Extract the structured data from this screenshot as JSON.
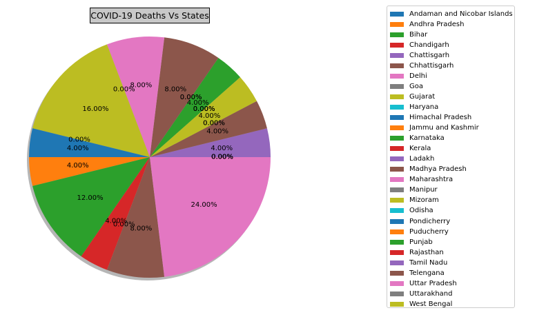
{
  "chart_data": {
    "type": "pie",
    "title": "COVID-19 Deaths Vs States",
    "categories": [
      "Andaman and Nicobar Islands",
      "Andhra Pradesh",
      "Bihar",
      "Chandigarh",
      "Chattisgarh",
      "Chhattisgarh",
      "Delhi",
      "Goa",
      "Gujarat",
      "Haryana",
      "Himachal Pradesh",
      "Jammu and Kashmir",
      "Karnataka",
      "Kerala",
      "Ladakh",
      "Madhya Pradesh",
      "Maharashtra",
      "Manipur",
      "Mizoram",
      "Odisha",
      "Pondicherry",
      "Puducherry",
      "Punjab",
      "Rajasthan",
      "Tamil Nadu",
      "Telengana",
      "Uttar Pradesh",
      "Uttarakhand",
      "West Bengal"
    ],
    "values": [
      0,
      0,
      0,
      0,
      4,
      4,
      0,
      0,
      4,
      0,
      0,
      0,
      4,
      0,
      0,
      8,
      8,
      0,
      16,
      0,
      4,
      4,
      12,
      4,
      0,
      8,
      24,
      0,
      0
    ],
    "labels": [
      "0.00%",
      "0.00%",
      "0.00%",
      "0.00%",
      "4.00%",
      "4.00%",
      "0.00%",
      "0.00%",
      "4.00%",
      "0.00%",
      "0.00%",
      "0.00%",
      "4.00%",
      "0.00%",
      "0.00%",
      "8.00%",
      "8.00%",
      "0.00%",
      "16.00%",
      "0.00%",
      "4.00%",
      "4.00%",
      "12.00%",
      "4.00%",
      "0.00%",
      "8.00%",
      "24.00%",
      "0.00%",
      "0.00%"
    ],
    "colors": [
      "#1f77b4",
      "#ff7f0e",
      "#2ca02c",
      "#d62728",
      "#9467bd",
      "#8c564b",
      "#e377c2",
      "#7f7f7f",
      "#bcbd22",
      "#17becf",
      "#1f77b4",
      "#ff7f0e",
      "#2ca02c",
      "#d62728",
      "#9467bd",
      "#8c564b",
      "#e377c2",
      "#7f7f7f",
      "#bcbd22",
      "#17becf",
      "#1f77b4",
      "#ff7f0e",
      "#2ca02c",
      "#d62728",
      "#9467bd",
      "#8c564b",
      "#e377c2",
      "#7f7f7f",
      "#bcbd22"
    ],
    "shadow": true,
    "legend_position": "right"
  }
}
